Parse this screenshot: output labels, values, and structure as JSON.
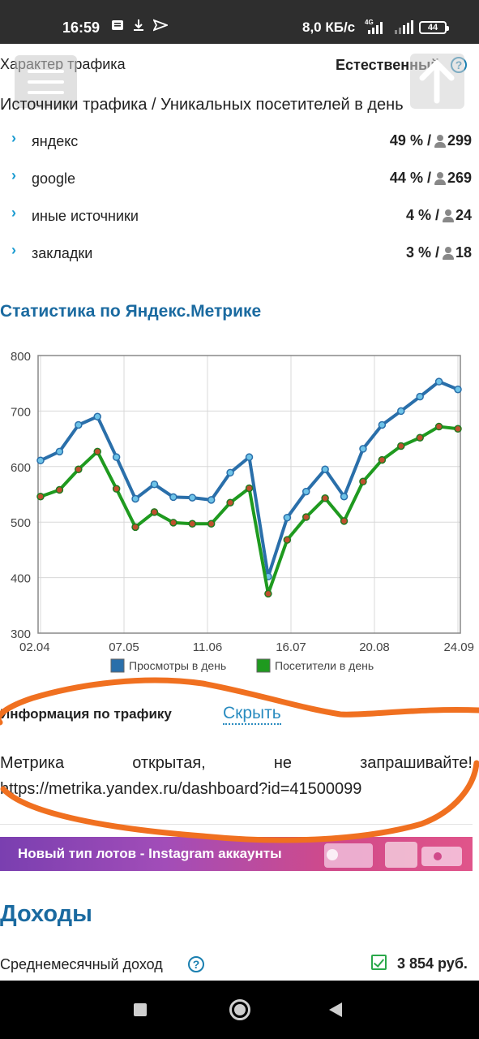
{
  "status_bar": {
    "time": "16:59",
    "speed": "8,0 КБ/с",
    "network": "4G",
    "battery": "44"
  },
  "traffic": {
    "char_label": "Характер трафика",
    "char_value": "Естественный",
    "help": "?",
    "sources_title": "Источники трафика / Уникальных посетителей в день",
    "sources": [
      {
        "name": "яндекс",
        "percent": "49 % /",
        "visitors": "299"
      },
      {
        "name": "google",
        "percent": "44 % /",
        "visitors": "269"
      },
      {
        "name": "иные источники",
        "percent": "4 % /",
        "visitors": "24"
      },
      {
        "name": "закладки",
        "percent": "3 % /",
        "visitors": "18"
      }
    ]
  },
  "metrika": {
    "title": "Статистика по Яндекс.Метрике"
  },
  "chart_data": {
    "type": "line",
    "title": "",
    "xlabel": "",
    "ylabel": "",
    "ylim": [
      300,
      800
    ],
    "yticks": [
      "800",
      "700",
      "600",
      "500",
      "400",
      "300"
    ],
    "xtick_labels": [
      "02.04",
      "07.05",
      "11.06",
      "16.07",
      "20.08",
      "24.09"
    ],
    "grid": true,
    "legend_position": "bottom",
    "series": [
      {
        "name": "Просмотры в день",
        "color": "#2a6faa",
        "values": [
          611,
          627,
          675,
          690,
          617,
          542,
          568,
          545,
          544,
          540,
          589,
          617,
          402,
          508,
          555,
          595,
          546,
          632,
          675,
          700,
          726,
          753,
          739
        ]
      },
      {
        "name": "Посетители в день",
        "color": "#1f9a1f",
        "values": [
          546,
          558,
          595,
          627,
          560,
          491,
          518,
          499,
          497,
          497,
          535,
          561,
          371,
          468,
          509,
          543,
          502,
          573,
          612,
          637,
          652,
          672,
          668
        ]
      }
    ]
  },
  "info": {
    "title": "Информация по трафику",
    "hide_label": "Скрыть",
    "text_words": [
      "Метрика",
      "открытая,",
      "не",
      "запрашивайте!"
    ],
    "url": "https://metrika.yandex.ru/dashboard?id=41500099"
  },
  "banner": {
    "text": "Новый тип лотов - Instagram аккаунты"
  },
  "income": {
    "title": "Доходы",
    "avg_label": "Среднемесячный доход",
    "avg_value": "3 854 руб."
  }
}
